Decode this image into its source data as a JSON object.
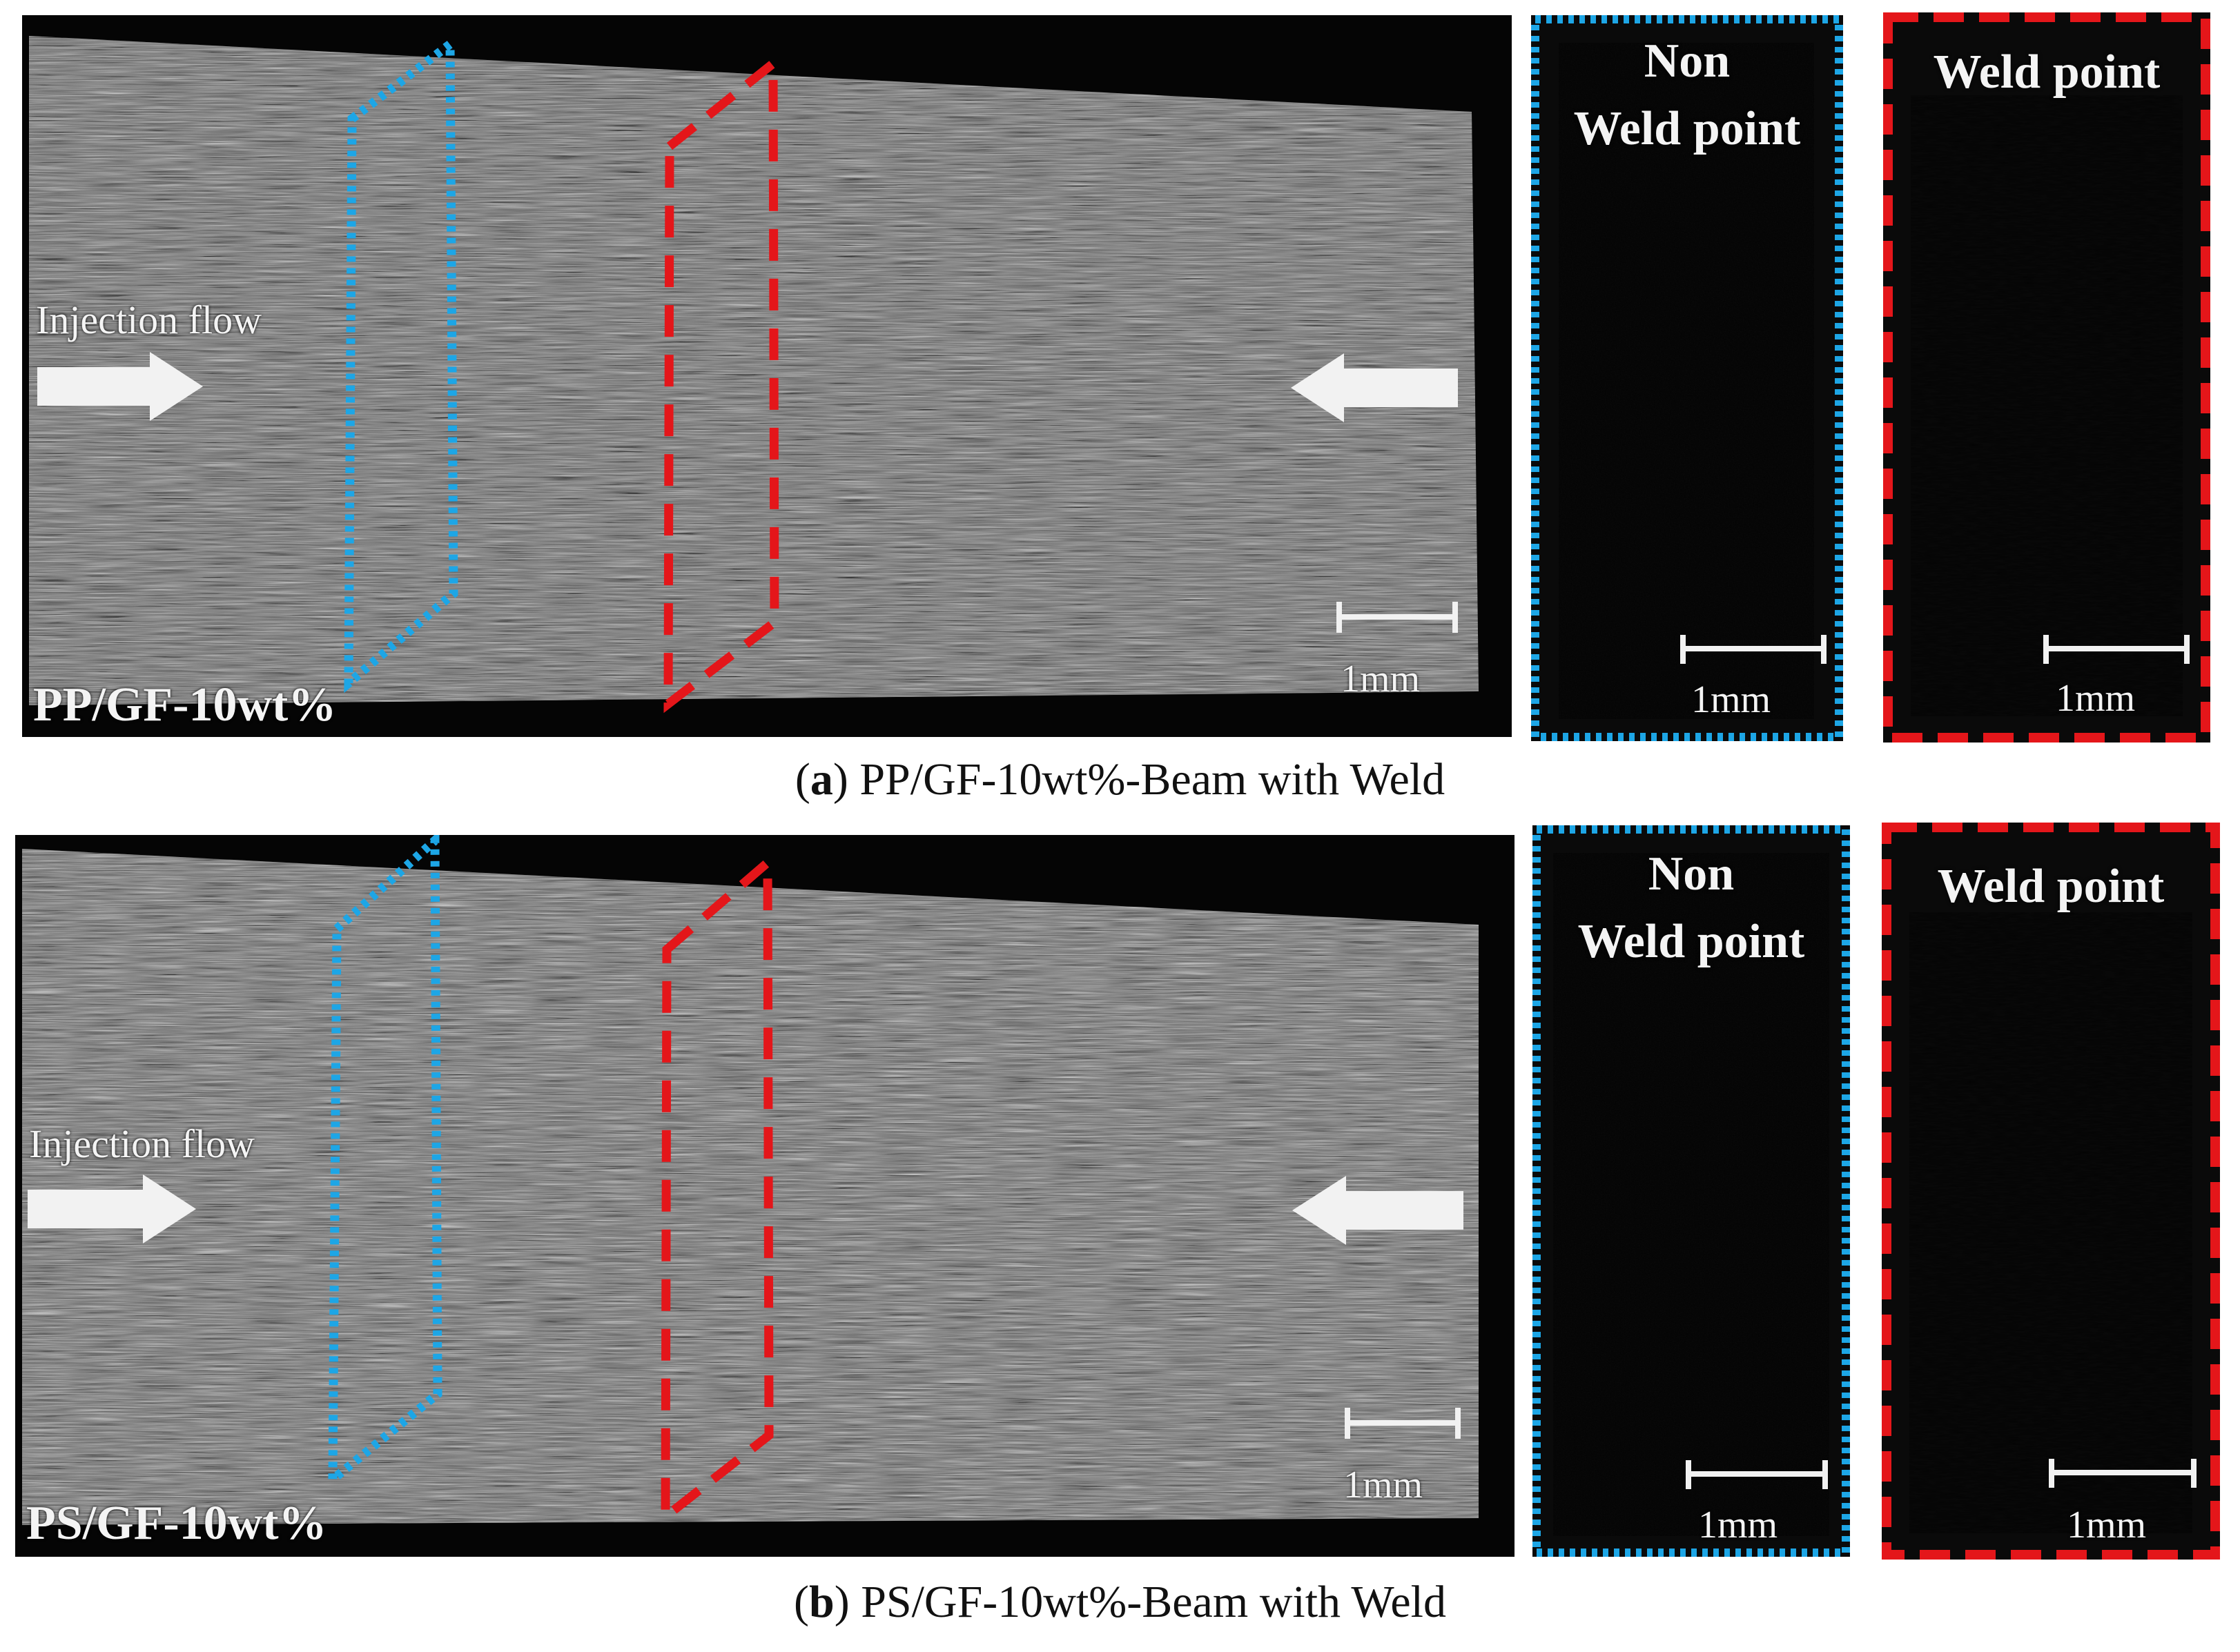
{
  "panels": [
    {
      "sample_label": "PP/GF-10wt%",
      "flow_label": "Injection flow",
      "scale_label": "1mm",
      "non_weld_title_line1": "Non",
      "non_weld_title_line2": "Weld point",
      "weld_title": "Weld point",
      "caption_letter": "a",
      "caption_text": "PP/GF-10wt%-Beam with Weld"
    },
    {
      "sample_label": "PS/GF-10wt%",
      "flow_label": "Injection flow",
      "scale_label": "1mm",
      "non_weld_title_line1": "Non",
      "non_weld_title_line2": "Weld point",
      "weld_title": "Weld point",
      "caption_letter": "b",
      "caption_text": "PS/GF-10wt%-Beam with Weld"
    }
  ],
  "colors": {
    "non_weld_outline": "#1da6e6",
    "weld_outline": "#e4161a",
    "background": "#050505"
  }
}
